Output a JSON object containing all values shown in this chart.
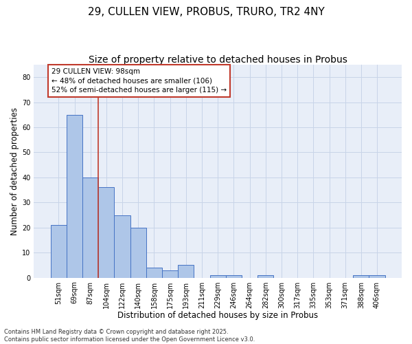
{
  "title": "29, CULLEN VIEW, PROBUS, TRURO, TR2 4NY",
  "subtitle": "Size of property relative to detached houses in Probus",
  "xlabel": "Distribution of detached houses by size in Probus",
  "ylabel": "Number of detached properties",
  "categories": [
    "51sqm",
    "69sqm",
    "87sqm",
    "104sqm",
    "122sqm",
    "140sqm",
    "158sqm",
    "175sqm",
    "193sqm",
    "211sqm",
    "229sqm",
    "246sqm",
    "264sqm",
    "282sqm",
    "300sqm",
    "317sqm",
    "335sqm",
    "353sqm",
    "371sqm",
    "388sqm",
    "406sqm"
  ],
  "values": [
    21,
    65,
    40,
    36,
    25,
    20,
    4,
    3,
    5,
    0,
    1,
    1,
    0,
    1,
    0,
    0,
    0,
    0,
    0,
    1,
    1
  ],
  "bar_color": "#aec6e8",
  "bar_edge_color": "#4472c4",
  "vline_x_index": 2.5,
  "vline_color": "#c0392b",
  "annotation_text": "29 CULLEN VIEW: 98sqm\n← 48% of detached houses are smaller (106)\n52% of semi-detached houses are larger (115) →",
  "annotation_box_color": "#ffffff",
  "annotation_box_edge_color": "#c0392b",
  "ylim": [
    0,
    85
  ],
  "yticks": [
    0,
    10,
    20,
    30,
    40,
    50,
    60,
    70,
    80
  ],
  "grid_color": "#c8d4e8",
  "background_color": "#e8eef8",
  "footer_text": "Contains HM Land Registry data © Crown copyright and database right 2025.\nContains public sector information licensed under the Open Government Licence v3.0.",
  "title_fontsize": 11,
  "subtitle_fontsize": 10,
  "axis_label_fontsize": 8.5,
  "tick_fontsize": 7,
  "annotation_fontsize": 7.5,
  "footer_fontsize": 6
}
